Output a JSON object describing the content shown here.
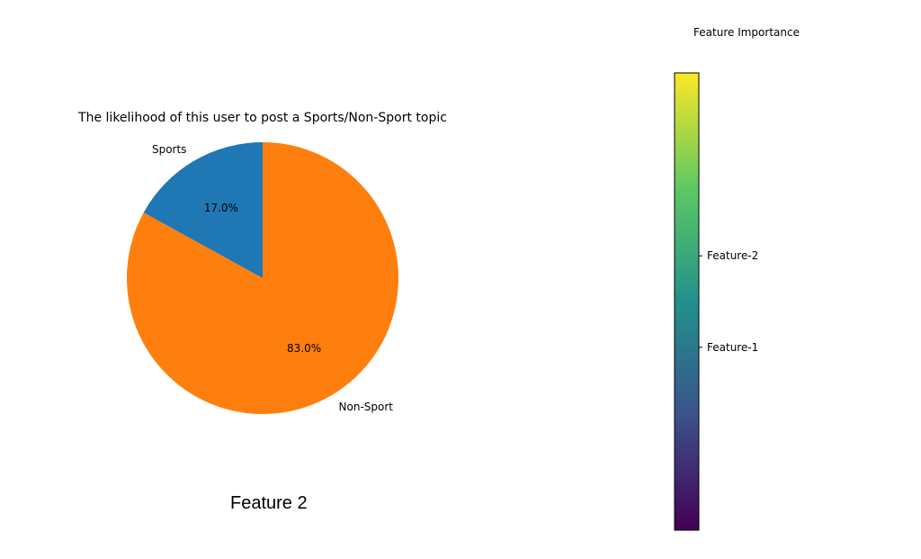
{
  "chart_data": [
    {
      "type": "pie",
      "title": "The likelihood of this user to post a Sports/Non-Sport topic",
      "categories": [
        "Sports",
        "Non-Sport"
      ],
      "values": [
        17.0,
        83.0
      ],
      "value_labels": [
        "17.0%",
        "83.0%"
      ],
      "colors": [
        "#1f77b4",
        "#ff7f0e"
      ],
      "start_angle": "12 o'clock, counter-clockwise"
    },
    {
      "type": "heatmap",
      "title": "Feature Importance",
      "colormap": "viridis",
      "colormap_stops": [
        "#440154",
        "#3b528b",
        "#21918c",
        "#5ec962",
        "#fde725"
      ],
      "ticks": [
        {
          "label": "Feature-1",
          "value": 0.4
        },
        {
          "label": "Feature-2",
          "value": 0.6
        }
      ],
      "range": [
        0,
        1
      ]
    }
  ],
  "caption": "Feature 2"
}
